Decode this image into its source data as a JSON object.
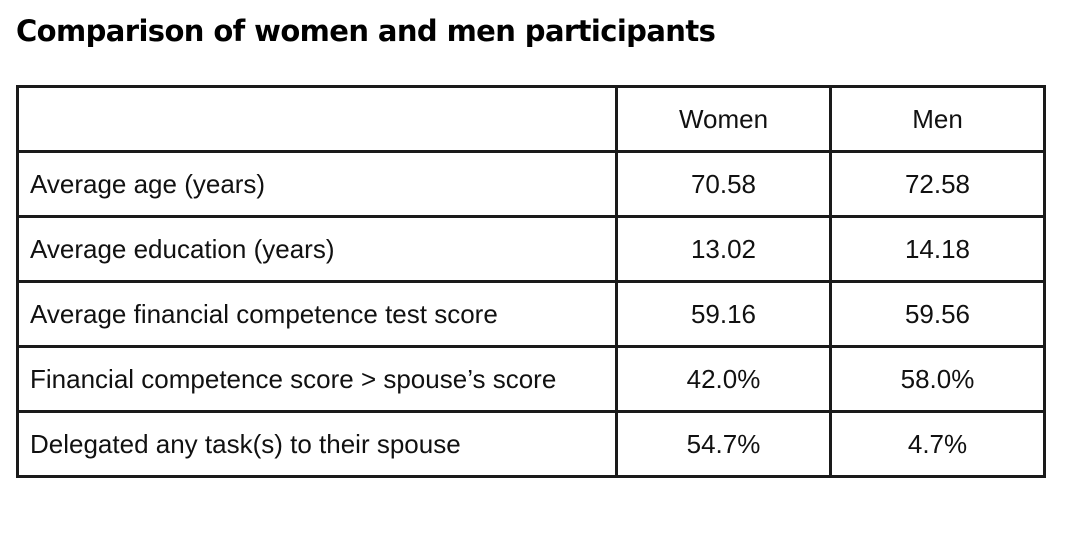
{
  "title": "Comparison of women and men participants",
  "table": {
    "headers": [
      "",
      "Women",
      "Men"
    ],
    "rows": [
      {
        "label": "Average age (years)",
        "women": "70.58",
        "men": "72.58"
      },
      {
        "label": "Average education (years)",
        "women": "13.02",
        "men": "14.18"
      },
      {
        "label": "Average financial competence test score",
        "women": "59.16",
        "men": "59.56"
      },
      {
        "label": "Financial competence score > spouse’s score",
        "women": "42.0%",
        "men": "58.0%"
      },
      {
        "label": "Delegated any task(s) to their spouse",
        "women": "54.7%",
        "men": "4.7%"
      }
    ]
  }
}
